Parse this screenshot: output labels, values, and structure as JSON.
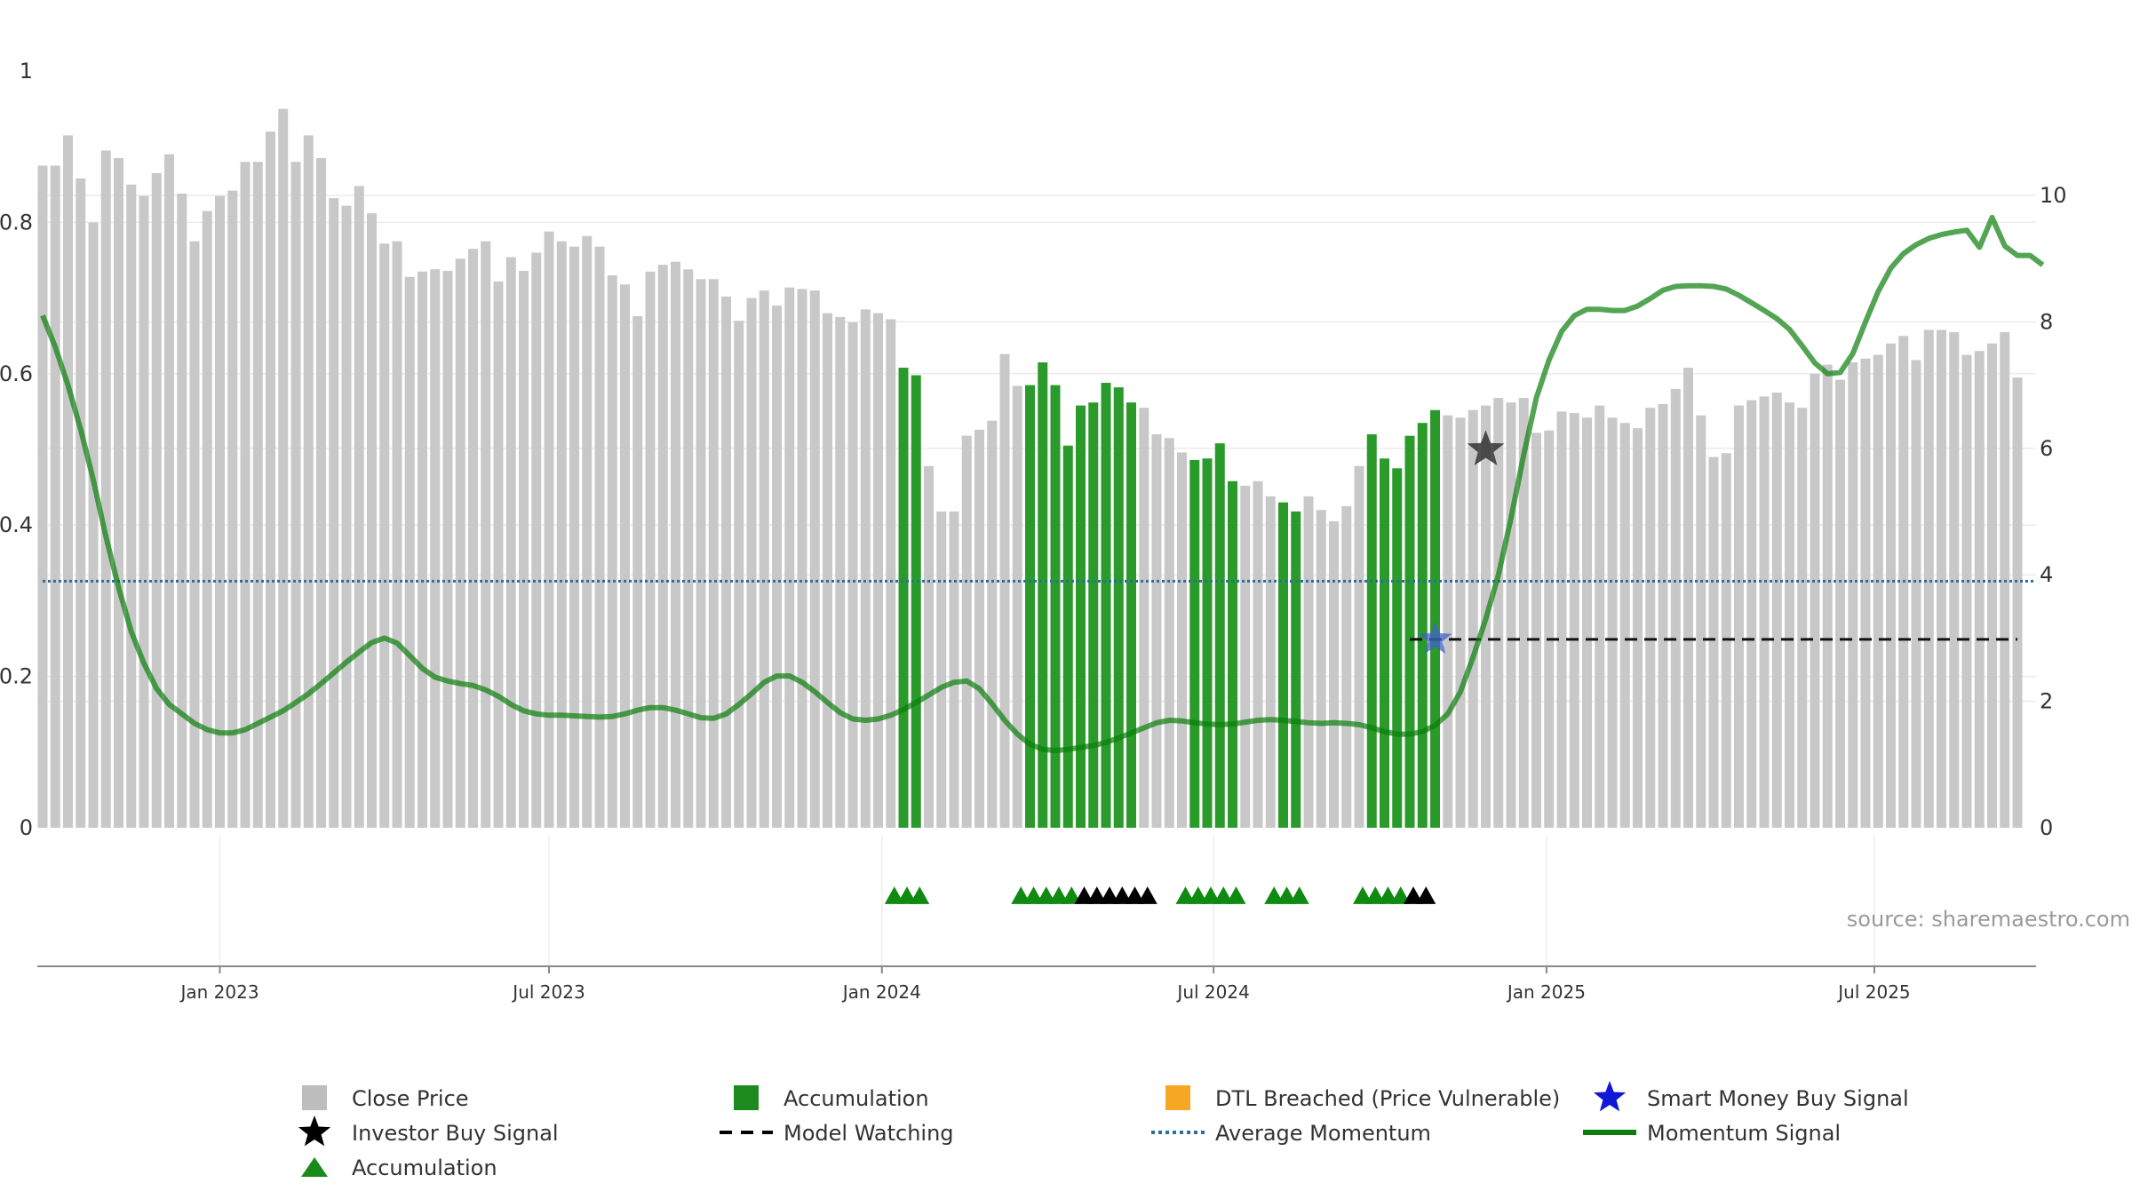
{
  "chart_data": {
    "type": "bar",
    "source_note": "source: sharemaestro.com",
    "x_ticks": [
      "Jan 2023",
      "Jul 2023",
      "Jan 2024",
      "Jul 2024",
      "Jan 2025",
      "Jul 2025"
    ],
    "y_left": {
      "ylim": [
        0,
        1
      ],
      "ticks": [
        "0",
        "0.2",
        "0.4",
        "0.6",
        "0.8",
        "1"
      ]
    },
    "y_right": {
      "ylim": [
        0,
        10
      ],
      "ticks": [
        "0",
        "2",
        "4",
        "6",
        "8",
        "10"
      ]
    },
    "weeks_count": 157,
    "close_price": [
      0.875,
      0.875,
      0.915,
      0.858,
      0.8,
      0.895,
      0.885,
      0.85,
      0.835,
      0.865,
      0.89,
      0.838,
      0.775,
      0.815,
      0.835,
      0.842,
      0.88,
      0.88,
      0.92,
      0.95,
      0.88,
      0.915,
      0.885,
      0.832,
      0.822,
      0.848,
      0.812,
      0.772,
      0.775,
      0.728,
      0.735,
      0.738,
      0.736,
      0.752,
      0.765,
      0.775,
      0.722,
      0.754,
      0.736,
      0.76,
      0.788,
      0.775,
      0.768,
      0.782,
      0.768,
      0.73,
      0.718,
      0.676,
      0.735,
      0.744,
      0.748,
      0.738,
      0.725,
      0.725,
      0.702,
      0.67,
      0.7,
      0.71,
      0.69,
      0.714,
      0.712,
      0.71,
      0.68,
      0.675,
      0.668,
      0.685,
      0.68,
      0.672,
      0.608,
      0.598,
      0.478,
      0.418,
      0.418,
      0.518,
      0.526,
      0.538,
      0.626,
      0.584,
      0.585,
      0.615,
      0.585,
      0.505,
      0.558,
      0.562,
      0.588,
      0.582,
      0.562,
      0.555,
      0.52,
      0.515,
      0.496,
      0.486,
      0.488,
      0.508,
      0.458,
      0.452,
      0.458,
      0.438,
      0.43,
      0.418,
      0.438,
      0.42,
      0.405,
      0.425,
      0.478,
      0.52,
      0.488,
      0.475,
      0.518,
      0.535,
      0.552,
      0.545,
      0.542,
      0.552,
      0.558,
      0.568,
      0.562,
      0.568,
      0.522,
      0.525,
      0.55,
      0.548,
      0.542,
      0.558,
      0.542,
      0.535,
      0.528,
      0.555,
      0.56,
      0.58,
      0.608,
      0.545,
      0.49,
      0.495,
      0.558,
      0.565,
      0.57,
      0.575,
      0.562,
      0.555,
      0.6,
      0.612,
      0.592,
      0.615,
      0.62,
      0.625,
      0.64,
      0.65,
      0.618,
      0.658,
      0.658,
      0.655,
      0.625,
      0.63,
      0.64,
      0.655,
      0.595
    ],
    "accumulation_bar_ranges": [
      [
        68,
        69
      ],
      [
        78,
        86
      ],
      [
        91,
        94
      ],
      [
        98,
        99
      ],
      [
        105,
        110
      ]
    ],
    "momentum_signal": [
      [
        0,
        8.1
      ],
      [
        1,
        7.6
      ],
      [
        2,
        7.0
      ],
      [
        3,
        6.3
      ],
      [
        4,
        5.5
      ],
      [
        5,
        4.6
      ],
      [
        6,
        3.8
      ],
      [
        7,
        3.1
      ],
      [
        8,
        2.6
      ],
      [
        9,
        2.2
      ],
      [
        10,
        1.95
      ],
      [
        11,
        1.8
      ],
      [
        12,
        1.65
      ],
      [
        13,
        1.55
      ],
      [
        14,
        1.5
      ],
      [
        15,
        1.5
      ],
      [
        16,
        1.55
      ],
      [
        17,
        1.65
      ],
      [
        18,
        1.75
      ],
      [
        19,
        1.85
      ],
      [
        20,
        1.98
      ],
      [
        21,
        2.12
      ],
      [
        22,
        2.28
      ],
      [
        23,
        2.45
      ],
      [
        24,
        2.62
      ],
      [
        25,
        2.78
      ],
      [
        26,
        2.93
      ],
      [
        27,
        3.0
      ],
      [
        28,
        2.92
      ],
      [
        29,
        2.72
      ],
      [
        30,
        2.52
      ],
      [
        31,
        2.38
      ],
      [
        32,
        2.32
      ],
      [
        33,
        2.28
      ],
      [
        34,
        2.25
      ],
      [
        35,
        2.18
      ],
      [
        36,
        2.08
      ],
      [
        37,
        1.95
      ],
      [
        38,
        1.85
      ],
      [
        39,
        1.8
      ],
      [
        40,
        1.78
      ],
      [
        41,
        1.78
      ],
      [
        42,
        1.77
      ],
      [
        43,
        1.76
      ],
      [
        44,
        1.75
      ],
      [
        45,
        1.76
      ],
      [
        46,
        1.8
      ],
      [
        47,
        1.86
      ],
      [
        48,
        1.9
      ],
      [
        49,
        1.9
      ],
      [
        50,
        1.86
      ],
      [
        51,
        1.8
      ],
      [
        52,
        1.74
      ],
      [
        53,
        1.73
      ],
      [
        54,
        1.8
      ],
      [
        55,
        1.95
      ],
      [
        56,
        2.12
      ],
      [
        57,
        2.3
      ],
      [
        58,
        2.4
      ],
      [
        59,
        2.4
      ],
      [
        60,
        2.3
      ],
      [
        61,
        2.15
      ],
      [
        62,
        1.98
      ],
      [
        63,
        1.82
      ],
      [
        64,
        1.72
      ],
      [
        65,
        1.7
      ],
      [
        66,
        1.72
      ],
      [
        67,
        1.78
      ],
      [
        68,
        1.87
      ],
      [
        69,
        1.98
      ],
      [
        70,
        2.1
      ],
      [
        71,
        2.22
      ],
      [
        72,
        2.3
      ],
      [
        73,
        2.32
      ],
      [
        74,
        2.2
      ],
      [
        75,
        1.96
      ],
      [
        76,
        1.7
      ],
      [
        77,
        1.48
      ],
      [
        78,
        1.32
      ],
      [
        79,
        1.24
      ],
      [
        80,
        1.22
      ],
      [
        81,
        1.24
      ],
      [
        82,
        1.27
      ],
      [
        83,
        1.3
      ],
      [
        84,
        1.35
      ],
      [
        85,
        1.42
      ],
      [
        86,
        1.5
      ],
      [
        87,
        1.58
      ],
      [
        88,
        1.66
      ],
      [
        89,
        1.7
      ],
      [
        90,
        1.69
      ],
      [
        91,
        1.66
      ],
      [
        92,
        1.64
      ],
      [
        93,
        1.63
      ],
      [
        94,
        1.64
      ],
      [
        95,
        1.67
      ],
      [
        96,
        1.7
      ],
      [
        97,
        1.71
      ],
      [
        98,
        1.7
      ],
      [
        99,
        1.68
      ],
      [
        100,
        1.66
      ],
      [
        101,
        1.65
      ],
      [
        102,
        1.66
      ],
      [
        103,
        1.65
      ],
      [
        104,
        1.63
      ],
      [
        105,
        1.58
      ],
      [
        106,
        1.52
      ],
      [
        107,
        1.48
      ],
      [
        108,
        1.48
      ],
      [
        109,
        1.52
      ],
      [
        110,
        1.62
      ],
      [
        111,
        1.8
      ],
      [
        112,
        2.15
      ],
      [
        113,
        2.7
      ],
      [
        114,
        3.3
      ],
      [
        115,
        4.0
      ],
      [
        116,
        4.9
      ],
      [
        117,
        5.9
      ],
      [
        118,
        6.8
      ],
      [
        119,
        7.4
      ],
      [
        120,
        7.85
      ],
      [
        121,
        8.1
      ],
      [
        122,
        8.2
      ],
      [
        123,
        8.2
      ],
      [
        124,
        8.18
      ],
      [
        125,
        8.18
      ],
      [
        126,
        8.25
      ],
      [
        127,
        8.37
      ],
      [
        128,
        8.5
      ],
      [
        129,
        8.56
      ],
      [
        130,
        8.57
      ],
      [
        131,
        8.57
      ],
      [
        132,
        8.56
      ],
      [
        133,
        8.52
      ],
      [
        134,
        8.42
      ],
      [
        135,
        8.3
      ],
      [
        136,
        8.18
      ],
      [
        137,
        8.05
      ],
      [
        138,
        7.88
      ],
      [
        139,
        7.62
      ],
      [
        140,
        7.35
      ],
      [
        141,
        7.18
      ],
      [
        142,
        7.2
      ],
      [
        143,
        7.5
      ],
      [
        144,
        8.0
      ],
      [
        145,
        8.48
      ],
      [
        146,
        8.85
      ],
      [
        147,
        9.08
      ],
      [
        148,
        9.22
      ],
      [
        149,
        9.32
      ],
      [
        150,
        9.38
      ],
      [
        151,
        9.42
      ],
      [
        152,
        9.45
      ],
      [
        153,
        9.18
      ],
      [
        154,
        9.65
      ],
      [
        155,
        9.2
      ],
      [
        156,
        9.05
      ],
      [
        157,
        9.05
      ],
      [
        158,
        8.9
      ]
    ],
    "average_momentum": 3.9,
    "model_watching": {
      "from_week": 108,
      "to_week": 156,
      "value": 2.98
    },
    "investor_buy_signal": {
      "week": 114,
      "value": 5.98
    },
    "smart_money_buy_signal": {
      "week": 110,
      "value": 2.98
    },
    "accumulation_markers": [
      67,
      68,
      69,
      77,
      78,
      79,
      80,
      81,
      90,
      91,
      92,
      93,
      94,
      97,
      98,
      99,
      104,
      105,
      106,
      107
    ],
    "investor_markers": [
      82,
      83,
      84,
      85,
      86,
      87,
      108,
      109
    ],
    "legend": [
      {
        "label": "Close Price",
        "symbol": "square",
        "color": "#bdbdbd"
      },
      {
        "label": "Accumulation",
        "symbol": "square",
        "color": "#1c8a1c"
      },
      {
        "label": "DTL Breached (Price Vulnerable)",
        "symbol": "square",
        "color": "#f7a823"
      },
      {
        "label": "Smart Money Buy Signal",
        "symbol": "star",
        "color": "#0f17d8"
      },
      {
        "label": "Investor Buy Signal",
        "symbol": "star",
        "color": "#000000"
      },
      {
        "label": "Model Watching",
        "symbol": "dash",
        "color": "#000000"
      },
      {
        "label": "Average Momentum",
        "symbol": "dotted",
        "color": "#2a6f9e"
      },
      {
        "label": "Momentum Signal",
        "symbol": "line",
        "color": "#0a7d0a"
      },
      {
        "label": "Accumulation",
        "symbol": "triangle",
        "color": "#1a8a1a"
      }
    ],
    "colors": {
      "close_price": "#c8c8c8",
      "accumulation": "#2a9a2a",
      "momentum": "#0a7d0a",
      "average_momentum": "#2a6f9e",
      "grid": "#ececec"
    }
  }
}
